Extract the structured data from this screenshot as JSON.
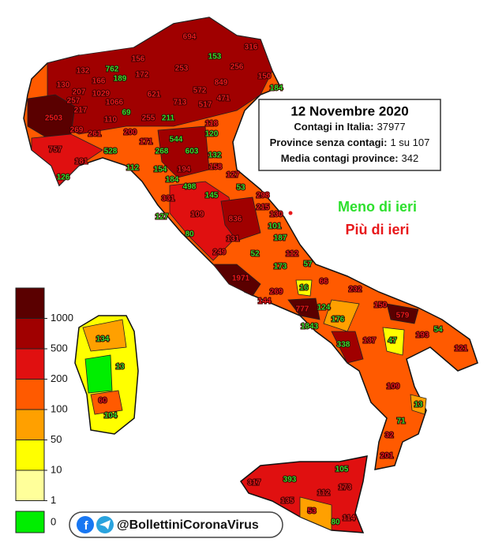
{
  "header": {
    "title": "12 Novembre 2020",
    "lines": [
      {
        "label": "Contagi in Italia:",
        "value": "37977"
      },
      {
        "label": "Province senza contagi:",
        "value": "1 su 107"
      },
      {
        "label": "Media contagi province:",
        "value": "342"
      }
    ]
  },
  "trend": {
    "down": {
      "label": "Meno di ieri",
      "color": "#2ee02e"
    },
    "up": {
      "label": "Più di ieri",
      "color": "#e8181b"
    }
  },
  "legend": {
    "ticks": [
      1000,
      500,
      200,
      100,
      50,
      10,
      1
    ],
    "colors": [
      "#5a0000",
      "#a00000",
      "#e01010",
      "#ff5a00",
      "#ffa000",
      "#ffff00",
      "#ffff9a"
    ],
    "zero": {
      "label": 0,
      "color": "#00ee00"
    }
  },
  "footer": {
    "handle": "@BollettiniCoronaVirus"
  },
  "provinces": [
    {
      "value": 694,
      "trend": "up"
    },
    {
      "value": 316,
      "trend": "up"
    },
    {
      "value": 153,
      "trend": "down"
    },
    {
      "value": 156,
      "trend": "up"
    },
    {
      "value": 762,
      "trend": "down"
    },
    {
      "value": 253,
      "trend": "up"
    },
    {
      "value": 256,
      "trend": "up"
    },
    {
      "value": 172,
      "trend": "up"
    },
    {
      "value": 189,
      "trend": "down"
    },
    {
      "value": 130,
      "trend": "up"
    },
    {
      "value": 132,
      "trend": "up"
    },
    {
      "value": 166,
      "trend": "up"
    },
    {
      "value": 849,
      "trend": "up"
    },
    {
      "value": 150,
      "trend": "up"
    },
    {
      "value": 184,
      "trend": "down"
    },
    {
      "value": 207,
      "trend": "up"
    },
    {
      "value": 1029,
      "trend": "up"
    },
    {
      "value": 621,
      "trend": "up"
    },
    {
      "value": 572,
      "trend": "up"
    },
    {
      "value": 471,
      "trend": "up"
    },
    {
      "value": 1066,
      "trend": "up"
    },
    {
      "value": 713,
      "trend": "up"
    },
    {
      "value": 517,
      "trend": "up"
    },
    {
      "value": 257,
      "trend": "up"
    },
    {
      "value": 217,
      "trend": "up"
    },
    {
      "value": 69,
      "trend": "down"
    },
    {
      "value": 255,
      "trend": "up"
    },
    {
      "value": 211,
      "trend": "down"
    },
    {
      "value": 2503,
      "trend": "up"
    },
    {
      "value": 110,
      "trend": "up"
    },
    {
      "value": 118,
      "trend": "up"
    },
    {
      "value": 269,
      "trend": "up"
    },
    {
      "value": 261,
      "trend": "up"
    },
    {
      "value": 200,
      "trend": "up"
    },
    {
      "value": 544,
      "trend": "down"
    },
    {
      "value": 120,
      "trend": "down"
    },
    {
      "value": 171,
      "trend": "up"
    },
    {
      "value": 757,
      "trend": "up"
    },
    {
      "value": 528,
      "trend": "down"
    },
    {
      "value": 268,
      "trend": "down"
    },
    {
      "value": 603,
      "trend": "down"
    },
    {
      "value": 132,
      "trend": "down"
    },
    {
      "value": 181,
      "trend": "up"
    },
    {
      "value": 112,
      "trend": "down"
    },
    {
      "value": 154,
      "trend": "down"
    },
    {
      "value": 194,
      "trend": "up"
    },
    {
      "value": 158,
      "trend": "up"
    },
    {
      "value": 126,
      "trend": "down"
    },
    {
      "value": 184,
      "trend": "down"
    },
    {
      "value": 498,
      "trend": "down"
    },
    {
      "value": 127,
      "trend": "up"
    },
    {
      "value": 53,
      "trend": "down"
    },
    {
      "value": 331,
      "trend": "up"
    },
    {
      "value": 145,
      "trend": "down"
    },
    {
      "value": 298,
      "trend": "up"
    },
    {
      "value": 215,
      "trend": "up"
    },
    {
      "value": 109,
      "trend": "up"
    },
    {
      "value": 836,
      "trend": "up"
    },
    {
      "value": 130,
      "trend": "up"
    },
    {
      "value": 127,
      "trend": "down"
    },
    {
      "value": 101,
      "trend": "down"
    },
    {
      "value": 80,
      "trend": "down"
    },
    {
      "value": 187,
      "trend": "down"
    },
    {
      "value": 131,
      "trend": "up"
    },
    {
      "value": 112,
      "trend": "up"
    },
    {
      "value": 249,
      "trend": "up"
    },
    {
      "value": 52,
      "trend": "down"
    },
    {
      "value": 57,
      "trend": "down"
    },
    {
      "value": 173,
      "trend": "down"
    },
    {
      "value": 1971,
      "trend": "up"
    },
    {
      "value": 16,
      "trend": "down"
    },
    {
      "value": 66,
      "trend": "up"
    },
    {
      "value": 232,
      "trend": "up"
    },
    {
      "value": 269,
      "trend": "up"
    },
    {
      "value": 144,
      "trend": "up"
    },
    {
      "value": 777,
      "trend": "up"
    },
    {
      "value": 124,
      "trend": "down"
    },
    {
      "value": 150,
      "trend": "up"
    },
    {
      "value": 579,
      "trend": "up"
    },
    {
      "value": 1843,
      "trend": "down"
    },
    {
      "value": 176,
      "trend": "down"
    },
    {
      "value": 54,
      "trend": "down"
    },
    {
      "value": 193,
      "trend": "up"
    },
    {
      "value": 338,
      "trend": "down"
    },
    {
      "value": 137,
      "trend": "up"
    },
    {
      "value": 47,
      "trend": "down"
    },
    {
      "value": 121,
      "trend": "up"
    },
    {
      "value": 109,
      "trend": "up"
    },
    {
      "value": 13,
      "trend": "down"
    },
    {
      "value": 71,
      "trend": "down"
    },
    {
      "value": 32,
      "trend": "up"
    },
    {
      "value": 201,
      "trend": "up"
    },
    {
      "value": 105,
      "trend": "down"
    },
    {
      "value": 393,
      "trend": "down"
    },
    {
      "value": 317,
      "trend": "up"
    },
    {
      "value": 112,
      "trend": "up"
    },
    {
      "value": 173,
      "trend": "up"
    },
    {
      "value": 135,
      "trend": "up"
    },
    {
      "value": 53,
      "trend": "up"
    },
    {
      "value": 80,
      "trend": "down"
    },
    {
      "value": 114,
      "trend": "up"
    },
    {
      "value": 134,
      "trend": "down"
    },
    {
      "value": 13,
      "trend": "down"
    },
    {
      "value": 60,
      "trend": "up"
    },
    {
      "value": 104,
      "trend": "down"
    }
  ]
}
